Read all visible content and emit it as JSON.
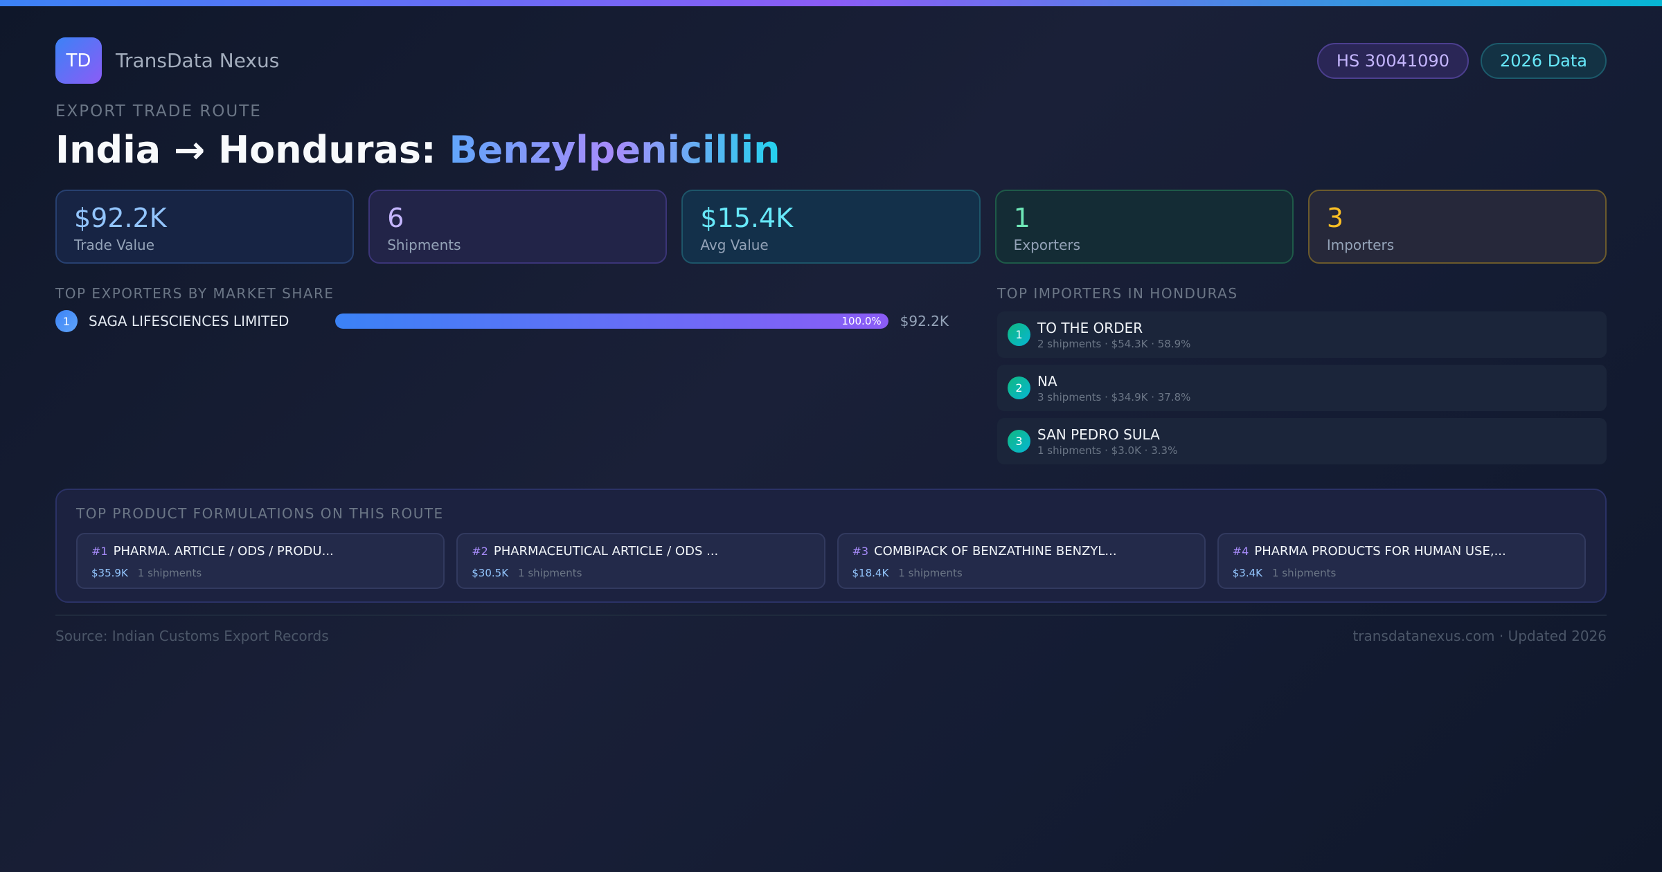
{
  "brand": {
    "logo_text": "TD",
    "name": "TransData Nexus"
  },
  "badges": {
    "hs_code": "HS 30041090",
    "year": "2026 Data"
  },
  "route": {
    "eyebrow": "EXPORT TRADE ROUTE",
    "title_prefix": "India → Honduras: ",
    "product": "Benzylpenicillin"
  },
  "stats": [
    {
      "value": "$92.2K",
      "label": "Trade Value"
    },
    {
      "value": "6",
      "label": "Shipments"
    },
    {
      "value": "$15.4K",
      "label": "Avg Value"
    },
    {
      "value": "1",
      "label": "Exporters"
    },
    {
      "value": "3",
      "label": "Importers"
    }
  ],
  "exporters": {
    "heading": "TOP EXPORTERS BY MARKET SHARE",
    "items": [
      {
        "rank": "1",
        "name": "SAGA LIFESCIENCES LIMITED",
        "share_pct": 100,
        "share_label": "100.0%",
        "value": "$92.2K"
      }
    ]
  },
  "importers": {
    "heading": "TOP IMPORTERS IN HONDURAS",
    "items": [
      {
        "rank": "1",
        "name": "TO THE ORDER",
        "meta": "2 shipments · $54.3K · 58.9%"
      },
      {
        "rank": "2",
        "name": "NA",
        "meta": "3 shipments · $34.9K · 37.8%"
      },
      {
        "rank": "3",
        "name": "SAN PEDRO SULA",
        "meta": "1 shipments · $3.0K · 3.3%"
      }
    ]
  },
  "formulations": {
    "heading": "TOP PRODUCT FORMULATIONS ON THIS ROUTE",
    "items": [
      {
        "rank": "#1",
        "name": "PHARMA. ARTICLE / ODS / PRODU...",
        "value": "$35.9K",
        "shipments": "1 shipments"
      },
      {
        "rank": "#2",
        "name": "PHARMACEUTICAL ARTICLE / ODS ...",
        "value": "$30.5K",
        "shipments": "1 shipments"
      },
      {
        "rank": "#3",
        "name": "COMBIPACK OF BENZATHINE BENZYL...",
        "value": "$18.4K",
        "shipments": "1 shipments"
      },
      {
        "rank": "#4",
        "name": "PHARMA PRODUCTS FOR HUMAN USE,...",
        "value": "$3.4K",
        "shipments": "1 shipments"
      }
    ]
  },
  "footer": {
    "source": "Source: Indian Customs Export Records",
    "site": "transdatanexus.com · Updated 2026"
  }
}
